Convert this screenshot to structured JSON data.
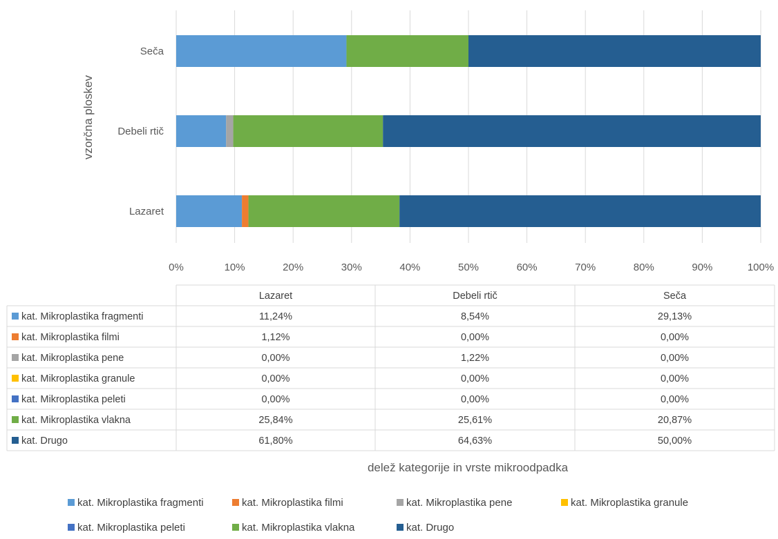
{
  "chart_data": {
    "type": "bar",
    "orientation": "horizontal",
    "stacked": "percent",
    "categories": [
      "Lazaret",
      "Debeli rtič",
      "Seča"
    ],
    "ylabel": "vzorčna ploskev",
    "xlabel": "delež kategorije in vrste mikroodpadka",
    "xlim": [
      0,
      100
    ],
    "x_ticks": [
      "0%",
      "10%",
      "20%",
      "30%",
      "40%",
      "50%",
      "60%",
      "70%",
      "80%",
      "90%",
      "100%"
    ],
    "grid": true,
    "legend_position": "bottom",
    "series": [
      {
        "name": "kat. Mikroplastika fragmenti",
        "color": "#5B9BD5",
        "values": [
          11.24,
          8.54,
          29.13
        ],
        "labels": [
          "11,24%",
          "8,54%",
          "29,13%"
        ]
      },
      {
        "name": "kat. Mikroplastika filmi",
        "color": "#ED7D31",
        "values": [
          1.12,
          0.0,
          0.0
        ],
        "labels": [
          "1,12%",
          "0,00%",
          "0,00%"
        ]
      },
      {
        "name": "kat. Mikroplastika pene",
        "color": "#A5A5A5",
        "values": [
          0.0,
          1.22,
          0.0
        ],
        "labels": [
          "0,00%",
          "1,22%",
          "0,00%"
        ]
      },
      {
        "name": "kat. Mikroplastika granule",
        "color": "#FFC000",
        "values": [
          0.0,
          0.0,
          0.0
        ],
        "labels": [
          "0,00%",
          "0,00%",
          "0,00%"
        ]
      },
      {
        "name": "kat. Mikroplastika peleti",
        "color": "#4472C4",
        "values": [
          0.0,
          0.0,
          0.0
        ],
        "labels": [
          "0,00%",
          "0,00%",
          "0,00%"
        ]
      },
      {
        "name": "kat. Mikroplastika vlakna",
        "color": "#70AD47",
        "values": [
          25.84,
          25.61,
          20.87
        ],
        "labels": [
          "25,84%",
          "25,61%",
          "20,87%"
        ]
      },
      {
        "name": "kat. Drugo",
        "color": "#255E91",
        "values": [
          61.8,
          64.63,
          50.0
        ],
        "labels": [
          "61,80%",
          "64,63%",
          "50,00%"
        ]
      }
    ]
  }
}
